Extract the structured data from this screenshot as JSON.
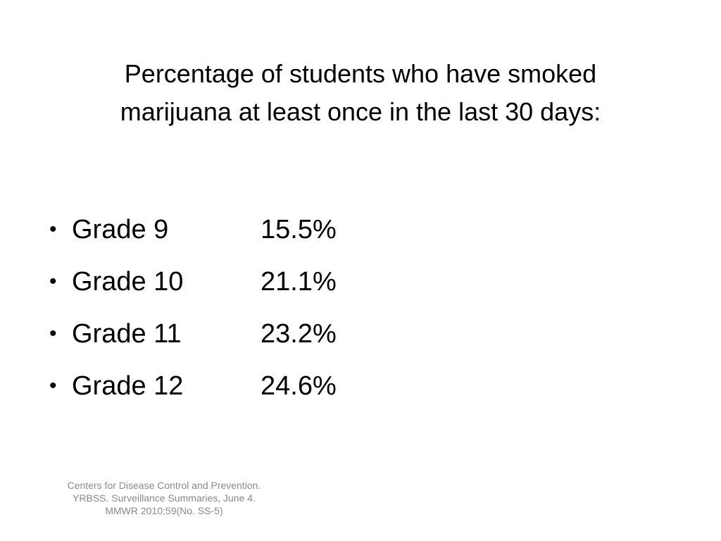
{
  "title": {
    "lines": [
      "Percentage of students who have smoked",
      "marijuana at least once in the last 30 days:"
    ]
  },
  "bullets": [
    {
      "label": "Grade 9",
      "value": "15.5%"
    },
    {
      "label": "Grade 10",
      "value": "21.1%"
    },
    {
      "label": "Grade 11",
      "value": "23.2%"
    },
    {
      "label": "Grade 12",
      "value": "24.6%"
    }
  ],
  "footnote": "Centers for Disease Control and Prevention. YRBSS. Surveillance Summaries, June 4. MMWR 2010;59(No. SS-5)"
}
